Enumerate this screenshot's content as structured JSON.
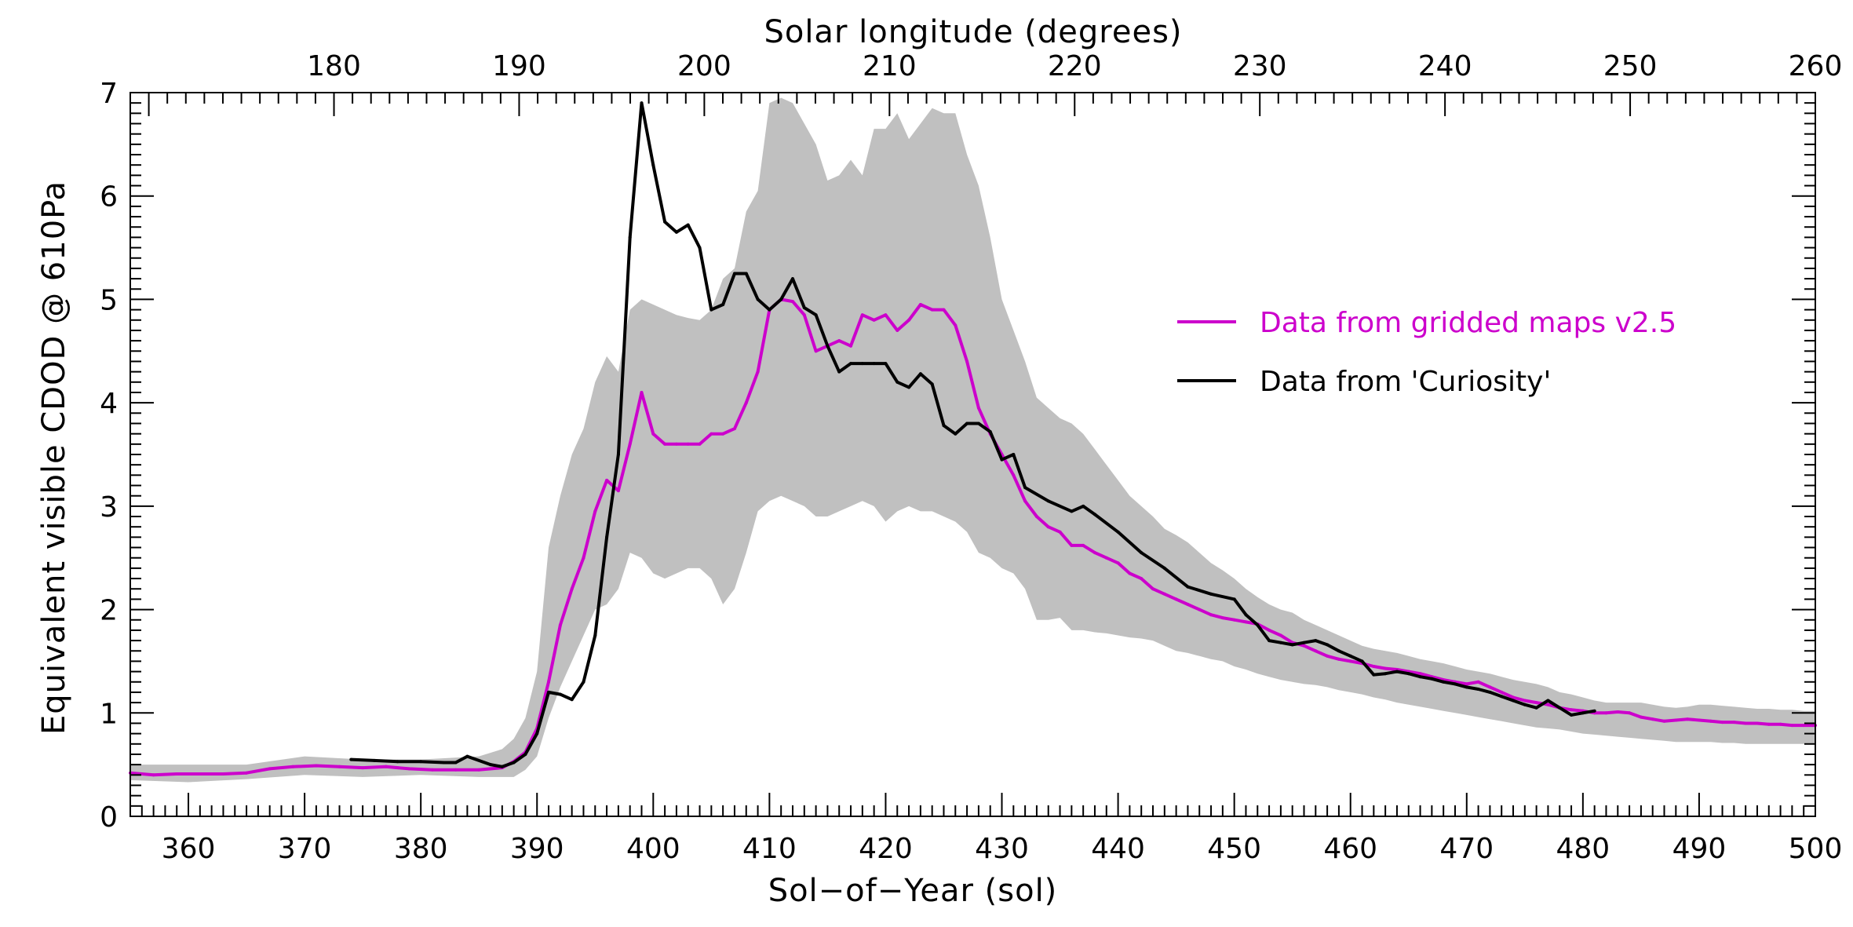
{
  "chart_data": {
    "type": "line",
    "title": "",
    "xlabel": "Sol−of−Year (sol)",
    "ylabel": "Equivalent visible CDOD @ 610Pa",
    "x2label": "Solar longitude (degrees)",
    "xlim": [
      355,
      500
    ],
    "ylim": [
      0,
      7
    ],
    "x2lim": [
      169,
      260
    ],
    "xticks": [
      360,
      370,
      380,
      390,
      400,
      410,
      420,
      430,
      440,
      450,
      460,
      470,
      480,
      490,
      500
    ],
    "yticks": [
      0,
      1,
      2,
      3,
      4,
      5,
      6,
      7
    ],
    "x2ticks": [
      180,
      190,
      200,
      210,
      220,
      230,
      240,
      250,
      260
    ],
    "legend_position": "right-center",
    "series": [
      {
        "name": "Data from gridded maps v2.5",
        "color": "#cc00cc",
        "x": [
          355,
          357,
          359,
          361,
          363,
          365,
          367,
          369,
          371,
          373,
          375,
          377,
          379,
          381,
          383,
          385,
          387,
          388,
          389,
          390,
          391,
          392,
          393,
          394,
          395,
          396,
          397,
          398,
          399,
          400,
          401,
          402,
          403,
          404,
          405,
          406,
          407,
          408,
          409,
          410,
          411,
          412,
          413,
          414,
          415,
          416,
          417,
          418,
          419,
          420,
          421,
          422,
          423,
          424,
          425,
          426,
          427,
          428,
          429,
          430,
          431,
          432,
          433,
          434,
          435,
          436,
          437,
          438,
          439,
          440,
          441,
          442,
          443,
          444,
          445,
          446,
          447,
          448,
          449,
          450,
          451,
          452,
          453,
          454,
          455,
          456,
          457,
          458,
          459,
          460,
          461,
          462,
          463,
          464,
          465,
          466,
          467,
          468,
          469,
          470,
          471,
          472,
          473,
          474,
          475,
          476,
          477,
          478,
          479,
          480,
          481,
          482,
          483,
          484,
          485,
          486,
          487,
          488,
          489,
          490,
          491,
          492,
          493,
          494,
          495,
          496,
          497,
          498,
          499,
          500
        ],
        "values": [
          0.42,
          0.4,
          0.41,
          0.41,
          0.41,
          0.42,
          0.46,
          0.48,
          0.49,
          0.48,
          0.47,
          0.48,
          0.46,
          0.45,
          0.45,
          0.45,
          0.47,
          0.53,
          0.62,
          0.85,
          1.3,
          1.85,
          2.2,
          2.5,
          2.95,
          3.25,
          3.15,
          3.6,
          4.1,
          3.7,
          3.6,
          3.6,
          3.6,
          3.6,
          3.7,
          3.7,
          3.75,
          4.0,
          4.3,
          4.9,
          5.0,
          4.98,
          4.85,
          4.5,
          4.55,
          4.6,
          4.55,
          4.85,
          4.8,
          4.85,
          4.7,
          4.8,
          4.95,
          4.9,
          4.9,
          4.75,
          4.4,
          3.95,
          3.7,
          3.5,
          3.3,
          3.05,
          2.9,
          2.8,
          2.75,
          2.62,
          2.62,
          2.55,
          2.5,
          2.45,
          2.35,
          2.3,
          2.2,
          2.15,
          2.1,
          2.05,
          2.0,
          1.95,
          1.92,
          1.9,
          1.88,
          1.86,
          1.8,
          1.75,
          1.68,
          1.65,
          1.6,
          1.55,
          1.52,
          1.5,
          1.48,
          1.45,
          1.43,
          1.42,
          1.4,
          1.38,
          1.35,
          1.32,
          1.3,
          1.28,
          1.3,
          1.25,
          1.2,
          1.15,
          1.12,
          1.1,
          1.08,
          1.05,
          1.03,
          1.02,
          1.0,
          1.0,
          1.01,
          1.0,
          0.96,
          0.94,
          0.92,
          0.93,
          0.94,
          0.93,
          0.92,
          0.91,
          0.91,
          0.9,
          0.9,
          0.89,
          0.89,
          0.88,
          0.88,
          0.88
        ]
      },
      {
        "name": "Data from 'Curiosity'",
        "color": "#000000",
        "x": [
          374,
          376,
          378,
          380,
          382,
          383,
          384,
          386,
          387,
          388,
          389,
          390,
          391,
          392,
          393,
          394,
          395,
          396,
          397,
          398,
          399,
          400,
          401,
          402,
          403,
          404,
          405,
          406,
          407,
          408,
          409,
          410,
          411,
          412,
          413,
          414,
          415,
          416,
          417,
          418,
          419,
          420,
          421,
          422,
          423,
          424,
          425,
          426,
          427,
          428,
          429,
          430,
          431,
          432,
          434,
          436,
          437,
          438,
          440,
          442,
          444,
          446,
          448,
          450,
          451,
          452,
          453,
          454,
          455,
          456,
          457,
          458,
          459,
          460,
          461,
          462,
          463,
          464,
          465,
          466,
          467,
          468,
          469,
          470,
          471,
          472,
          473,
          474,
          475,
          476,
          477,
          478,
          479,
          480,
          481
        ],
        "values": [
          0.55,
          0.54,
          0.53,
          0.53,
          0.52,
          0.52,
          0.58,
          0.5,
          0.48,
          0.52,
          0.6,
          0.8,
          1.2,
          1.18,
          1.13,
          1.3,
          1.75,
          2.7,
          3.5,
          5.6,
          6.9,
          6.3,
          5.75,
          5.65,
          5.72,
          5.5,
          4.9,
          4.95,
          5.25,
          5.25,
          5.0,
          4.9,
          5.0,
          5.2,
          4.92,
          4.85,
          4.55,
          4.3,
          4.38,
          4.38,
          4.38,
          4.38,
          4.2,
          4.15,
          4.28,
          4.18,
          3.78,
          3.7,
          3.8,
          3.8,
          3.72,
          3.45,
          3.5,
          3.18,
          3.05,
          2.95,
          3.0,
          2.92,
          2.75,
          2.55,
          2.4,
          2.22,
          2.15,
          2.1,
          1.95,
          1.85,
          1.7,
          1.68,
          1.66,
          1.68,
          1.7,
          1.66,
          1.6,
          1.55,
          1.5,
          1.37,
          1.38,
          1.4,
          1.38,
          1.35,
          1.33,
          1.3,
          1.28,
          1.25,
          1.23,
          1.2,
          1.16,
          1.12,
          1.08,
          1.05,
          1.12,
          1.05,
          0.98,
          1.0,
          1.02
        ]
      },
      {
        "name": "spread",
        "color": "#c0c0c0",
        "x": [
          355,
          360,
          365,
          370,
          375,
          380,
          385,
          387,
          388,
          389,
          390,
          391,
          392,
          393,
          394,
          395,
          396,
          397,
          398,
          399,
          400,
          401,
          402,
          403,
          404,
          405,
          406,
          407,
          408,
          409,
          410,
          411,
          412,
          413,
          414,
          415,
          416,
          417,
          418,
          419,
          420,
          421,
          422,
          423,
          424,
          425,
          426,
          427,
          428,
          429,
          430,
          431,
          432,
          433,
          434,
          435,
          436,
          437,
          438,
          439,
          440,
          441,
          442,
          443,
          444,
          445,
          446,
          447,
          448,
          449,
          450,
          451,
          452,
          453,
          454,
          455,
          456,
          457,
          458,
          459,
          460,
          461,
          462,
          463,
          464,
          465,
          466,
          467,
          468,
          469,
          470,
          471,
          472,
          473,
          474,
          475,
          476,
          477,
          478,
          479,
          480,
          481,
          482,
          483,
          484,
          485,
          486,
          487,
          488,
          489,
          490,
          491,
          492,
          493,
          494,
          495,
          496,
          497,
          498,
          499,
          500
        ],
        "upper": [
          0.5,
          0.5,
          0.5,
          0.58,
          0.55,
          0.55,
          0.58,
          0.65,
          0.75,
          0.95,
          1.4,
          2.6,
          3.1,
          3.5,
          3.75,
          4.2,
          4.45,
          4.3,
          4.9,
          5.0,
          4.95,
          4.9,
          4.85,
          4.82,
          4.8,
          4.9,
          5.2,
          5.3,
          5.85,
          6.05,
          6.9,
          6.95,
          6.9,
          6.7,
          6.5,
          6.15,
          6.2,
          6.35,
          6.2,
          6.65,
          6.65,
          6.8,
          6.55,
          6.7,
          6.85,
          6.8,
          6.8,
          6.4,
          6.1,
          5.6,
          5.0,
          4.7,
          4.4,
          4.05,
          3.95,
          3.85,
          3.8,
          3.7,
          3.55,
          3.4,
          3.25,
          3.1,
          3.0,
          2.9,
          2.78,
          2.72,
          2.65,
          2.55,
          2.45,
          2.38,
          2.3,
          2.2,
          2.12,
          2.05,
          2.0,
          1.97,
          1.9,
          1.85,
          1.8,
          1.75,
          1.7,
          1.65,
          1.62,
          1.6,
          1.58,
          1.55,
          1.52,
          1.5,
          1.48,
          1.45,
          1.42,
          1.4,
          1.38,
          1.35,
          1.32,
          1.3,
          1.28,
          1.25,
          1.2,
          1.18,
          1.15,
          1.12,
          1.1,
          1.1,
          1.1,
          1.1,
          1.08,
          1.06,
          1.05,
          1.06,
          1.08,
          1.08,
          1.07,
          1.06,
          1.05,
          1.04,
          1.04,
          1.03,
          1.03,
          1.02,
          1.02
        ],
        "lower": [
          0.35,
          0.33,
          0.36,
          0.4,
          0.38,
          0.4,
          0.38,
          0.38,
          0.38,
          0.45,
          0.58,
          0.95,
          1.25,
          1.5,
          1.75,
          2.0,
          2.05,
          2.2,
          2.55,
          2.5,
          2.35,
          2.3,
          2.35,
          2.4,
          2.4,
          2.3,
          2.05,
          2.2,
          2.55,
          2.95,
          3.05,
          3.1,
          3.05,
          3.0,
          2.9,
          2.9,
          2.95,
          3.0,
          3.05,
          3.0,
          2.85,
          2.95,
          3.0,
          2.95,
          2.95,
          2.9,
          2.85,
          2.75,
          2.55,
          2.5,
          2.4,
          2.35,
          2.2,
          1.9,
          1.9,
          1.92,
          1.8,
          1.8,
          1.78,
          1.77,
          1.75,
          1.73,
          1.72,
          1.7,
          1.65,
          1.6,
          1.58,
          1.55,
          1.52,
          1.5,
          1.45,
          1.42,
          1.38,
          1.35,
          1.32,
          1.3,
          1.28,
          1.27,
          1.25,
          1.22,
          1.2,
          1.18,
          1.15,
          1.13,
          1.1,
          1.08,
          1.06,
          1.04,
          1.02,
          1.0,
          0.98,
          0.96,
          0.94,
          0.92,
          0.9,
          0.88,
          0.86,
          0.85,
          0.84,
          0.82,
          0.8,
          0.79,
          0.78,
          0.77,
          0.76,
          0.75,
          0.74,
          0.73,
          0.72,
          0.72,
          0.72,
          0.72,
          0.71,
          0.71,
          0.7,
          0.7,
          0.7,
          0.7,
          0.7,
          0.7,
          0.7
        ]
      }
    ]
  },
  "legend": [
    {
      "label": "Data from gridded maps v2.5",
      "color": "#cc00cc"
    },
    {
      "label": "Data from 'Curiosity'",
      "color": "#000000"
    }
  ]
}
